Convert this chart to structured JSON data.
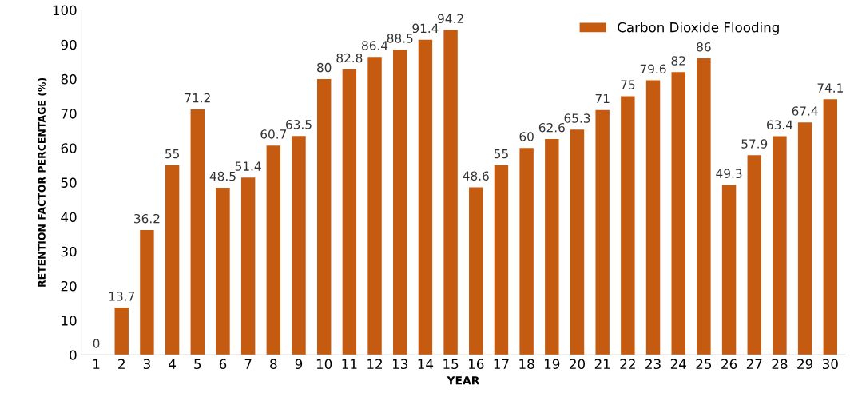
{
  "chart_data": {
    "type": "bar",
    "xlabel": "YEAR",
    "ylabel": "RETENTION FACTOR PERCENTAGE (%)",
    "categories": [
      "1",
      "2",
      "3",
      "4",
      "5",
      "6",
      "7",
      "8",
      "9",
      "10",
      "11",
      "12",
      "13",
      "14",
      "15",
      "16",
      "17",
      "18",
      "19",
      "20",
      "21",
      "22",
      "23",
      "24",
      "25",
      "26",
      "27",
      "28",
      "29",
      "30"
    ],
    "series": [
      {
        "name": "Carbon Dioxide Flooding",
        "color": "#c55a11",
        "values": [
          0,
          13.7,
          36.2,
          55,
          71.2,
          48.5,
          51.4,
          60.7,
          63.5,
          80,
          82.8,
          86.4,
          88.5,
          91.4,
          94.2,
          48.6,
          55,
          60,
          62.6,
          65.3,
          71,
          75,
          79.6,
          82,
          86,
          49.3,
          57.9,
          63.4,
          67.4,
          74.1
        ]
      }
    ],
    "ylim": [
      0,
      100
    ],
    "yticks": [
      0,
      10,
      20,
      30,
      40,
      50,
      60,
      70,
      80,
      90,
      100
    ],
    "data_labels": true,
    "legend": "top right",
    "grid": false
  }
}
